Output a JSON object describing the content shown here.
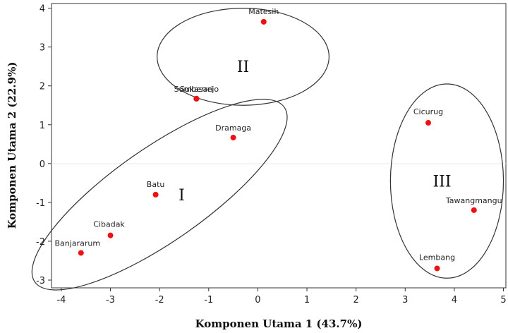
{
  "chart_data": {
    "type": "scatter",
    "xlabel": "Komponen Utama 1 (43.7%)",
    "ylabel": "Komponen Utama 2 (22.9%)",
    "xlim": [
      -4.2,
      5.05
    ],
    "ylim": [
      -3.2,
      4.12
    ],
    "x_ticks": [
      -4,
      -3,
      -2,
      -1,
      0,
      1,
      2,
      3,
      4,
      5
    ],
    "y_ticks": [
      -3,
      -2,
      -1,
      0,
      1,
      2,
      3,
      4
    ],
    "grid": false,
    "zero_line": true,
    "marker_color": "#ee1111",
    "points": [
      {
        "label": "Matesih",
        "x": 0.12,
        "y": 3.65
      },
      {
        "label": "Sumberrejo",
        "x": -1.25,
        "y": 1.67
      },
      {
        "label": "Sukasari",
        "x": -1.25,
        "y": 1.67
      },
      {
        "label": "Dramaga",
        "x": -0.5,
        "y": 0.67
      },
      {
        "label": "Batu",
        "x": -2.08,
        "y": -0.8
      },
      {
        "label": "Cibadak",
        "x": -3.0,
        "y": -1.85
      },
      {
        "label": "Banjararum",
        "x": -3.6,
        "y": -2.3
      },
      {
        "label": "Cicurug",
        "x": 3.47,
        "y": 1.05
      },
      {
        "label": "Tawangmangu",
        "x": 4.4,
        "y": -1.2
      },
      {
        "label": "Lembang",
        "x": 3.65,
        "y": -2.7
      }
    ],
    "groups": [
      {
        "label": "II",
        "cx": -0.3,
        "cy": 2.75,
        "rx": 1.75,
        "ry": 1.25,
        "angle": 0
      },
      {
        "label": "I",
        "cx": -2.0,
        "cy": -0.8,
        "rx": 3.1,
        "ry": 1.2,
        "angle": 35
      },
      {
        "label": "III",
        "cx": 3.85,
        "cy": -0.45,
        "rx": 1.15,
        "ry": 2.5,
        "angle": 0
      }
    ]
  }
}
